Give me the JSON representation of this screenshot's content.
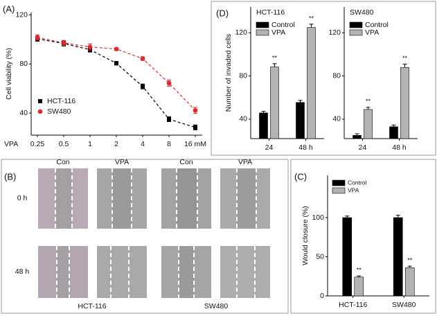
{
  "chart_data": [
    {
      "type": "line",
      "panel": "(A)",
      "x_label": "VPA",
      "y_label": "Cell viability (%)",
      "categories": [
        "0.25",
        "0.5",
        "1",
        "2",
        "4",
        "8",
        "16 mM"
      ],
      "ylim": [
        22,
        122
      ],
      "yticks": [
        40,
        80,
        120
      ],
      "series": [
        {
          "name": "HCT-116",
          "color": "#000000",
          "marker": "square",
          "values": [
            100.5,
            96.7,
            91.7,
            80.6,
            61.7,
            35,
            28.3
          ],
          "errors": [
            2,
            2,
            2,
            1.5,
            2,
            2,
            2
          ]
        },
        {
          "name": "SW480",
          "color": "#e8262a",
          "marker": "circle",
          "values": [
            101.7,
            97.2,
            93.9,
            92.2,
            84.4,
            64.4,
            42.2
          ],
          "errors": [
            2,
            2,
            2.5,
            1,
            1.5,
            2.5,
            2.5
          ]
        }
      ],
      "legend": "lower left"
    },
    {
      "type": "bar",
      "panel": "(D)",
      "title": "HCT-116",
      "y_label": "Number of invaded cells",
      "categories": [
        "24",
        "48 h"
      ],
      "ylim": [
        22,
        144
      ],
      "yticks": [
        40,
        80,
        120
      ],
      "series": [
        {
          "name": "Control",
          "color": "#000000",
          "values": [
            45.8,
            55.5
          ],
          "errors": [
            1.5,
            2
          ]
        },
        {
          "name": "VPA",
          "color": "#b3b3b3",
          "values": [
            88.4,
            125
          ],
          "errors": [
            3,
            3
          ]
        }
      ],
      "annotations": [
        "**",
        "**"
      ],
      "legend": "upper left"
    },
    {
      "type": "bar",
      "title": "SW480",
      "categories": [
        "24",
        "48 h"
      ],
      "ylim": [
        22,
        144
      ],
      "yticks": [
        40,
        80,
        120
      ],
      "series": [
        {
          "name": "Control",
          "color": "#000000",
          "values": [
            25,
            33
          ],
          "errors": [
            1.5,
            1.5
          ]
        },
        {
          "name": "VPA",
          "color": "#b3b3b3",
          "values": [
            49,
            88
          ],
          "errors": [
            2,
            3
          ]
        }
      ],
      "annotations": [
        "**",
        "**"
      ],
      "legend": "upper left"
    },
    {
      "type": "bar",
      "panel": "(C)",
      "y_label": "Would closure (%)",
      "categories": [
        "HCT-116",
        "SW480"
      ],
      "ylim": [
        0,
        154
      ],
      "yticks": [
        0,
        50,
        100
      ],
      "series": [
        {
          "name": "Control",
          "color": "#000000",
          "values": [
            100,
            100
          ],
          "errors": [
            2,
            3
          ]
        },
        {
          "name": "VPA",
          "color": "#b3b3b3",
          "values": [
            24,
            36
          ],
          "errors": [
            1.5,
            2
          ]
        }
      ],
      "annotations": [
        "**",
        "**"
      ],
      "legend": "upper left"
    }
  ],
  "panel_b": {
    "panel": "(B)",
    "column_headers": [
      "Con",
      "VPA",
      "Con",
      "VPA"
    ],
    "row_labels": [
      "0 h",
      "48 h"
    ],
    "cell_lines": [
      "HCT-116",
      "SW480"
    ]
  }
}
